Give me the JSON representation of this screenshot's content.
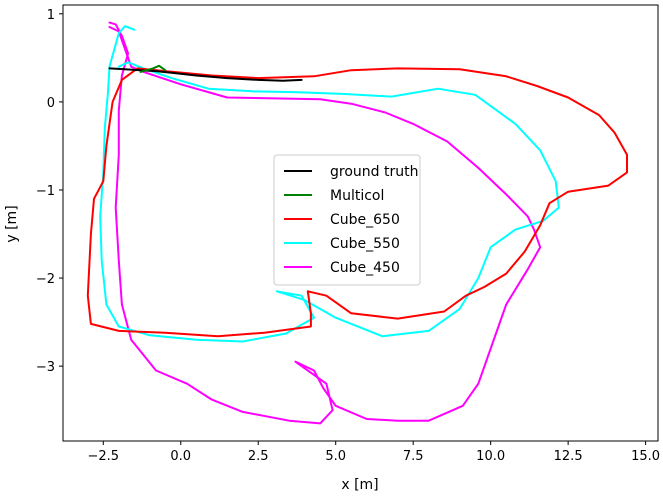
{
  "chart_data": {
    "type": "line",
    "xlabel": "x [m]",
    "ylabel": "y [m]",
    "xlim": [
      -3.8,
      15.4
    ],
    "ylim": [
      -3.85,
      1.1
    ],
    "xticks": [
      -2.5,
      0.0,
      2.5,
      5.0,
      7.5,
      10.0,
      12.5,
      15.0
    ],
    "xtick_labels": [
      "−2.5",
      "0.0",
      "2.5",
      "5.0",
      "7.5",
      "10.0",
      "12.5",
      "15.0"
    ],
    "yticks": [
      1,
      0,
      -1,
      -2,
      -3
    ],
    "ytick_labels": [
      "1",
      "0",
      "−1",
      "−2",
      "−3"
    ],
    "grid": false,
    "legend_position": "center",
    "series": [
      {
        "name": "ground truth",
        "color": "#000000",
        "points": [
          [
            -2.3,
            0.38
          ],
          [
            -1.8,
            0.37
          ],
          [
            -1.3,
            0.36
          ],
          [
            -0.8,
            0.35
          ],
          [
            -0.3,
            0.33
          ],
          [
            0.5,
            0.3
          ],
          [
            1.5,
            0.27
          ],
          [
            2.5,
            0.25
          ],
          [
            3.3,
            0.24
          ],
          [
            3.9,
            0.25
          ]
        ]
      },
      {
        "name": "Multicol",
        "color": "#008000",
        "points": [
          [
            -1.3,
            0.34
          ],
          [
            -0.9,
            0.38
          ],
          [
            -0.7,
            0.41
          ],
          [
            -0.5,
            0.36
          ]
        ]
      },
      {
        "name": "Cube_650",
        "color": "#ff0000",
        "points": [
          [
            -1.4,
            0.38
          ],
          [
            -0.5,
            0.35
          ],
          [
            1.0,
            0.3
          ],
          [
            2.5,
            0.27
          ],
          [
            4.3,
            0.29
          ],
          [
            5.5,
            0.36
          ],
          [
            7.0,
            0.38
          ],
          [
            9.0,
            0.37
          ],
          [
            10.5,
            0.29
          ],
          [
            11.5,
            0.18
          ],
          [
            12.5,
            0.05
          ],
          [
            13.5,
            -0.15
          ],
          [
            14.0,
            -0.35
          ],
          [
            14.4,
            -0.6
          ],
          [
            14.4,
            -0.8
          ],
          [
            13.8,
            -0.95
          ],
          [
            12.5,
            -1.02
          ],
          [
            11.9,
            -1.15
          ],
          [
            11.6,
            -1.4
          ],
          [
            11.1,
            -1.7
          ],
          [
            10.5,
            -1.95
          ],
          [
            9.8,
            -2.1
          ],
          [
            9.2,
            -2.2
          ],
          [
            8.5,
            -2.38
          ],
          [
            7.0,
            -2.46
          ],
          [
            5.5,
            -2.4
          ],
          [
            4.7,
            -2.2
          ],
          [
            4.1,
            -2.15
          ],
          [
            4.2,
            -2.4
          ],
          [
            4.2,
            -2.55
          ],
          [
            2.7,
            -2.62
          ],
          [
            1.2,
            -2.66
          ],
          [
            -0.5,
            -2.62
          ],
          [
            -2.0,
            -2.6
          ],
          [
            -2.9,
            -2.52
          ],
          [
            -3.0,
            -2.2
          ],
          [
            -2.9,
            -1.5
          ],
          [
            -2.8,
            -1.1
          ],
          [
            -2.5,
            -0.9
          ],
          [
            -2.4,
            -0.5
          ],
          [
            -2.2,
            0.0
          ],
          [
            -1.9,
            0.25
          ],
          [
            -1.4,
            0.38
          ]
        ]
      },
      {
        "name": "Cube_550",
        "color": "#00ffff",
        "points": [
          [
            -1.5,
            0.82
          ],
          [
            -1.8,
            0.86
          ],
          [
            -2.0,
            0.78
          ],
          [
            -2.3,
            0.4
          ],
          [
            -2.35,
            0.1
          ],
          [
            -2.45,
            -0.3
          ],
          [
            -2.5,
            -0.8
          ],
          [
            -2.6,
            -1.3
          ],
          [
            -2.55,
            -1.8
          ],
          [
            -2.4,
            -2.3
          ],
          [
            -2.0,
            -2.55
          ],
          [
            -1.0,
            -2.65
          ],
          [
            0.5,
            -2.7
          ],
          [
            2.0,
            -2.72
          ],
          [
            3.4,
            -2.63
          ],
          [
            4.3,
            -2.45
          ],
          [
            3.9,
            -2.2
          ],
          [
            3.1,
            -2.15
          ],
          [
            4.0,
            -2.25
          ],
          [
            5.0,
            -2.45
          ],
          [
            6.5,
            -2.66
          ],
          [
            8.0,
            -2.6
          ],
          [
            9.0,
            -2.35
          ],
          [
            9.6,
            -2.0
          ],
          [
            10.0,
            -1.65
          ],
          [
            10.8,
            -1.45
          ],
          [
            11.7,
            -1.35
          ],
          [
            12.2,
            -1.2
          ],
          [
            12.1,
            -0.9
          ],
          [
            11.6,
            -0.55
          ],
          [
            10.8,
            -0.25
          ],
          [
            9.5,
            0.08
          ],
          [
            8.3,
            0.15
          ],
          [
            6.8,
            0.06
          ],
          [
            5.3,
            0.09
          ],
          [
            3.8,
            0.11
          ],
          [
            2.3,
            0.12
          ],
          [
            0.9,
            0.15
          ],
          [
            -0.3,
            0.27
          ],
          [
            -1.2,
            0.38
          ],
          [
            -1.7,
            0.45
          ],
          [
            -2.0,
            0.4
          ]
        ]
      },
      {
        "name": "Cube_450",
        "color": "#ff00ff",
        "points": [
          [
            -2.3,
            0.85
          ],
          [
            -2.0,
            0.8
          ],
          [
            -1.8,
            0.6
          ],
          [
            -1.6,
            0.4
          ],
          [
            -1.2,
            0.34
          ],
          [
            0.0,
            0.2
          ],
          [
            1.5,
            0.05
          ],
          [
            3.0,
            0.04
          ],
          [
            4.5,
            0.03
          ],
          [
            5.5,
            -0.02
          ],
          [
            6.6,
            -0.12
          ],
          [
            7.5,
            -0.25
          ],
          [
            8.6,
            -0.45
          ],
          [
            9.6,
            -0.75
          ],
          [
            10.5,
            -1.05
          ],
          [
            11.2,
            -1.3
          ],
          [
            11.4,
            -1.45
          ],
          [
            11.6,
            -1.65
          ],
          [
            11.2,
            -1.9
          ],
          [
            10.5,
            -2.3
          ],
          [
            10.0,
            -2.8
          ],
          [
            9.6,
            -3.2
          ],
          [
            9.1,
            -3.45
          ],
          [
            8.0,
            -3.62
          ],
          [
            7.0,
            -3.62
          ],
          [
            6.0,
            -3.6
          ],
          [
            5.0,
            -3.45
          ],
          [
            4.6,
            -3.25
          ],
          [
            4.3,
            -3.05
          ],
          [
            3.7,
            -2.95
          ],
          [
            4.7,
            -3.2
          ],
          [
            4.9,
            -3.5
          ],
          [
            4.5,
            -3.65
          ],
          [
            3.5,
            -3.62
          ],
          [
            2.0,
            -3.52
          ],
          [
            1.0,
            -3.38
          ],
          [
            0.2,
            -3.2
          ],
          [
            -0.8,
            -3.05
          ],
          [
            -1.6,
            -2.7
          ],
          [
            -1.9,
            -2.3
          ],
          [
            -2.0,
            -1.8
          ],
          [
            -2.1,
            -1.2
          ],
          [
            -2.0,
            -0.6
          ],
          [
            -2.0,
            -0.1
          ],
          [
            -1.9,
            0.3
          ],
          [
            -1.7,
            0.55
          ],
          [
            -1.9,
            0.75
          ],
          [
            -2.1,
            0.88
          ],
          [
            -2.3,
            0.9
          ]
        ]
      }
    ]
  }
}
